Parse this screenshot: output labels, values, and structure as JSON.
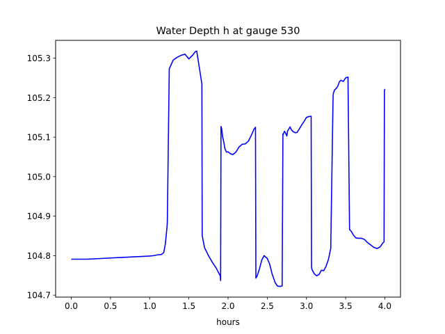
{
  "chart_data": {
    "type": "line",
    "title": "Water Depth h at gauge 530",
    "xlabel": "hours",
    "ylabel": "",
    "xlim": [
      -0.2,
      4.2
    ],
    "ylim": [
      104.695,
      105.345
    ],
    "grid": false,
    "legend": "none",
    "x_ticks": [
      0.0,
      0.5,
      1.0,
      1.5,
      2.0,
      2.5,
      3.0,
      3.5,
      4.0
    ],
    "x_tick_labels": [
      "0.0",
      "0.5",
      "1.0",
      "1.5",
      "2.0",
      "2.5",
      "3.0",
      "3.5",
      "4.0"
    ],
    "y_ticks": [
      104.7,
      104.8,
      104.9,
      105.0,
      105.1,
      105.2,
      105.3
    ],
    "y_tick_labels": [
      "104.7",
      "104.8",
      "104.9",
      "105.0",
      "105.1",
      "105.2",
      "105.3"
    ],
    "series": [
      {
        "color": "#0000ff",
        "x": [
          0.0,
          0.2,
          0.4,
          0.6,
          0.7,
          0.8,
          0.9,
          1.0,
          1.05,
          1.1,
          1.15,
          1.18,
          1.2,
          1.22,
          1.225,
          1.25,
          1.3,
          1.35,
          1.4,
          1.45,
          1.5,
          1.55,
          1.58,
          1.6,
          1.65,
          1.666,
          1.67,
          1.7,
          1.75,
          1.8,
          1.85,
          1.9,
          1.905,
          1.91,
          1.92,
          1.93,
          1.94,
          1.96,
          1.98,
          2.0,
          2.03,
          2.06,
          2.1,
          2.14,
          2.18,
          2.22,
          2.26,
          2.3,
          2.33,
          2.35,
          2.355,
          2.37,
          2.4,
          2.43,
          2.46,
          2.5,
          2.53,
          2.56,
          2.6,
          2.63,
          2.66,
          2.69,
          2.7,
          2.705,
          2.72,
          2.73,
          2.75,
          2.76,
          2.78,
          2.79,
          2.81,
          2.83,
          2.86,
          2.88,
          2.91,
          2.94,
          2.97,
          3.0,
          3.03,
          3.06,
          3.065,
          3.07,
          3.1,
          3.13,
          3.16,
          3.19,
          3.22,
          3.25,
          3.28,
          3.31,
          3.34,
          3.345,
          3.36,
          3.38,
          3.4,
          3.42,
          3.44,
          3.47,
          3.5,
          3.53,
          3.55,
          3.555,
          3.57,
          3.6,
          3.63,
          3.66,
          3.7,
          3.74,
          3.78,
          3.82,
          3.86,
          3.9,
          3.94,
          3.97,
          3.99,
          3.995,
          4.0
        ],
        "values": [
          104.791,
          104.791,
          104.793,
          104.795,
          104.796,
          104.797,
          104.798,
          104.799,
          104.8,
          104.802,
          104.803,
          104.808,
          104.83,
          104.87,
          104.884,
          105.273,
          105.295,
          105.302,
          105.307,
          105.31,
          105.298,
          105.308,
          105.316,
          105.318,
          105.255,
          105.234,
          104.851,
          104.82,
          104.8,
          104.783,
          104.768,
          104.749,
          104.737,
          105.127,
          105.12,
          105.101,
          105.093,
          105.071,
          105.062,
          105.063,
          105.058,
          105.056,
          105.062,
          105.075,
          105.082,
          105.083,
          105.09,
          105.106,
          105.12,
          105.125,
          104.743,
          104.748,
          104.766,
          104.789,
          104.8,
          104.793,
          104.779,
          104.755,
          104.732,
          104.723,
          104.722,
          104.723,
          105.108,
          105.107,
          105.115,
          105.112,
          105.103,
          105.116,
          105.122,
          105.126,
          105.118,
          105.114,
          105.111,
          105.112,
          105.121,
          105.131,
          105.14,
          105.15,
          105.152,
          105.153,
          104.771,
          104.765,
          104.754,
          104.749,
          104.752,
          104.763,
          104.762,
          104.773,
          104.79,
          104.818,
          105.205,
          105.212,
          105.22,
          105.223,
          105.229,
          105.24,
          105.244,
          105.241,
          105.25,
          105.252,
          104.866,
          104.865,
          104.862,
          104.852,
          104.845,
          104.844,
          104.844,
          104.841,
          104.833,
          104.827,
          104.821,
          104.818,
          104.822,
          104.831,
          104.835,
          105.218,
          105.222
        ]
      }
    ]
  }
}
